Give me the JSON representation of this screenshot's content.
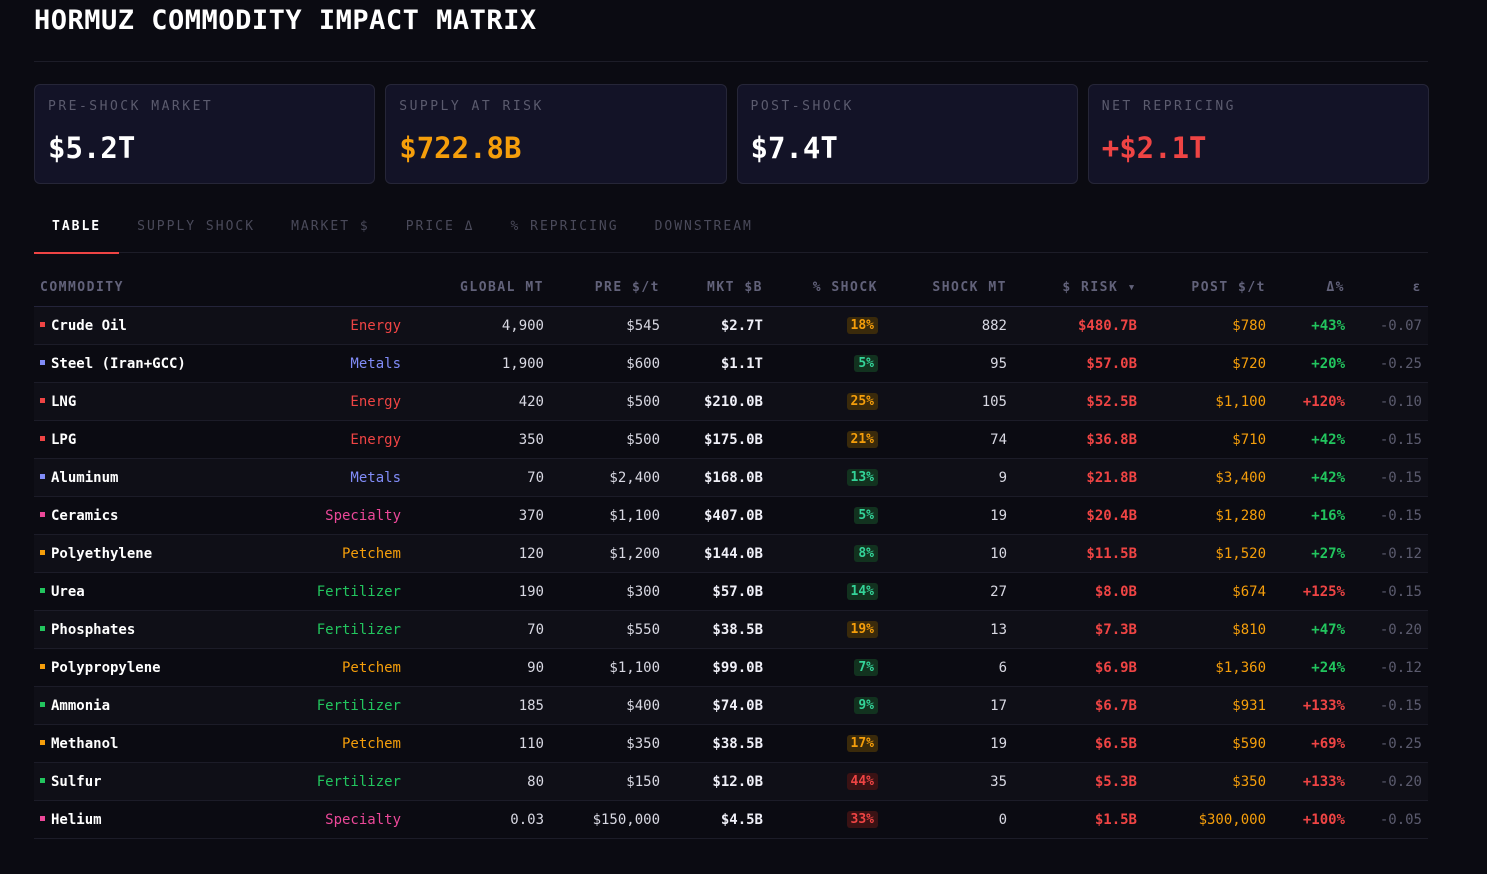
{
  "title": "HORMUZ COMMODITY IMPACT MATRIX",
  "cards": [
    {
      "label": "PRE-SHOCK MARKET",
      "value": "$5.2T",
      "color": "#ffffff"
    },
    {
      "label": "SUPPLY AT RISK",
      "value": "$722.8B",
      "color": "#f59e0b"
    },
    {
      "label": "POST-SHOCK",
      "value": "$7.4T",
      "color": "#ffffff"
    },
    {
      "label": "NET REPRICING",
      "value": "+$2.1T",
      "color": "#ef4444"
    }
  ],
  "tabs": [
    "TABLE",
    "SUPPLY SHOCK",
    "MARKET $",
    "PRICE Δ",
    "% REPRICING",
    "DOWNSTREAM"
  ],
  "active_tab": "TABLE",
  "columns": [
    "COMMODITY",
    "",
    "GLOBAL MT",
    "PRE $/t",
    "MKT $B",
    "% SHOCK",
    "SHOCK MT",
    "$ RISK ▾",
    "POST $/t",
    "Δ%",
    "ε"
  ],
  "category_colors": {
    "Energy": "#ef4444",
    "Metals": "#818cf8",
    "Specialty": "#ec4899",
    "Petchem": "#f59e0b",
    "Fertilizer": "#22c55e"
  },
  "rows": [
    {
      "name": "Crude Oil",
      "category": "Energy",
      "global_mt": "4,900",
      "pre": "$545",
      "mkt": "$2.7T",
      "shock": "18%",
      "shock_level": "amber",
      "shock_mt": "882",
      "risk": "$480.7B",
      "post": "$780",
      "delta": "+43%",
      "delta_level": "green",
      "eps": "-0.07"
    },
    {
      "name": "Steel (Iran+GCC)",
      "category": "Metals",
      "global_mt": "1,900",
      "pre": "$600",
      "mkt": "$1.1T",
      "shock": "5%",
      "shock_level": "green",
      "shock_mt": "95",
      "risk": "$57.0B",
      "post": "$720",
      "delta": "+20%",
      "delta_level": "green",
      "eps": "-0.25"
    },
    {
      "name": "LNG",
      "category": "Energy",
      "global_mt": "420",
      "pre": "$500",
      "mkt": "$210.0B",
      "shock": "25%",
      "shock_level": "amber",
      "shock_mt": "105",
      "risk": "$52.5B",
      "post": "$1,100",
      "delta": "+120%",
      "delta_level": "red",
      "eps": "-0.10"
    },
    {
      "name": "LPG",
      "category": "Energy",
      "global_mt": "350",
      "pre": "$500",
      "mkt": "$175.0B",
      "shock": "21%",
      "shock_level": "amber",
      "shock_mt": "74",
      "risk": "$36.8B",
      "post": "$710",
      "delta": "+42%",
      "delta_level": "green",
      "eps": "-0.15"
    },
    {
      "name": "Aluminum",
      "category": "Metals",
      "global_mt": "70",
      "pre": "$2,400",
      "mkt": "$168.0B",
      "shock": "13%",
      "shock_level": "green",
      "shock_mt": "9",
      "risk": "$21.8B",
      "post": "$3,400",
      "delta": "+42%",
      "delta_level": "green",
      "eps": "-0.15"
    },
    {
      "name": "Ceramics",
      "category": "Specialty",
      "global_mt": "370",
      "pre": "$1,100",
      "mkt": "$407.0B",
      "shock": "5%",
      "shock_level": "green",
      "shock_mt": "19",
      "risk": "$20.4B",
      "post": "$1,280",
      "delta": "+16%",
      "delta_level": "green",
      "eps": "-0.15"
    },
    {
      "name": "Polyethylene",
      "category": "Petchem",
      "global_mt": "120",
      "pre": "$1,200",
      "mkt": "$144.0B",
      "shock": "8%",
      "shock_level": "green",
      "shock_mt": "10",
      "risk": "$11.5B",
      "post": "$1,520",
      "delta": "+27%",
      "delta_level": "green",
      "eps": "-0.12"
    },
    {
      "name": "Urea",
      "category": "Fertilizer",
      "global_mt": "190",
      "pre": "$300",
      "mkt": "$57.0B",
      "shock": "14%",
      "shock_level": "green",
      "shock_mt": "27",
      "risk": "$8.0B",
      "post": "$674",
      "delta": "+125%",
      "delta_level": "red",
      "eps": "-0.15"
    },
    {
      "name": "Phosphates",
      "category": "Fertilizer",
      "global_mt": "70",
      "pre": "$550",
      "mkt": "$38.5B",
      "shock": "19%",
      "shock_level": "amber",
      "shock_mt": "13",
      "risk": "$7.3B",
      "post": "$810",
      "delta": "+47%",
      "delta_level": "green",
      "eps": "-0.20"
    },
    {
      "name": "Polypropylene",
      "category": "Petchem",
      "global_mt": "90",
      "pre": "$1,100",
      "mkt": "$99.0B",
      "shock": "7%",
      "shock_level": "green",
      "shock_mt": "6",
      "risk": "$6.9B",
      "post": "$1,360",
      "delta": "+24%",
      "delta_level": "green",
      "eps": "-0.12"
    },
    {
      "name": "Ammonia",
      "category": "Fertilizer",
      "global_mt": "185",
      "pre": "$400",
      "mkt": "$74.0B",
      "shock": "9%",
      "shock_level": "green",
      "shock_mt": "17",
      "risk": "$6.7B",
      "post": "$931",
      "delta": "+133%",
      "delta_level": "red",
      "eps": "-0.15"
    },
    {
      "name": "Methanol",
      "category": "Petchem",
      "global_mt": "110",
      "pre": "$350",
      "mkt": "$38.5B",
      "shock": "17%",
      "shock_level": "amber",
      "shock_mt": "19",
      "risk": "$6.5B",
      "post": "$590",
      "delta": "+69%",
      "delta_level": "red",
      "eps": "-0.25"
    },
    {
      "name": "Sulfur",
      "category": "Fertilizer",
      "global_mt": "80",
      "pre": "$150",
      "mkt": "$12.0B",
      "shock": "44%",
      "shock_level": "red",
      "shock_mt": "35",
      "risk": "$5.3B",
      "post": "$350",
      "delta": "+133%",
      "delta_level": "red",
      "eps": "-0.20"
    },
    {
      "name": "Helium",
      "category": "Specialty",
      "global_mt": "0.03",
      "pre": "$150,000",
      "mkt": "$4.5B",
      "shock": "33%",
      "shock_level": "red",
      "shock_mt": "0",
      "risk": "$1.5B",
      "post": "$300,000",
      "delta": "+100%",
      "delta_level": "red",
      "eps": "-0.05"
    }
  ]
}
